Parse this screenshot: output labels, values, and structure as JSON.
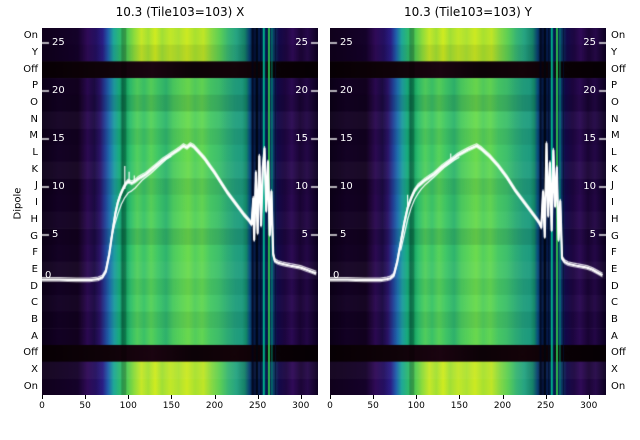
{
  "chart_data": {
    "type": "heatmap",
    "ylabel": "Dipole",
    "x_ticks": [
      0,
      50,
      100,
      150,
      200,
      250,
      300
    ],
    "x_range": [
      0,
      320
    ],
    "amp_ticks": [
      25,
      20,
      15,
      10,
      5
    ],
    "zero_tick": "0",
    "row_labels": [
      "On",
      "Y",
      "Off",
      "P",
      "O",
      "N",
      "M",
      "L",
      "K",
      "J",
      "I",
      "H",
      "G",
      "F",
      "E",
      "D",
      "C",
      "B",
      "A",
      "Off",
      "X",
      "On"
    ],
    "row_types": [
      "bright",
      "bright",
      "off",
      "main",
      "main",
      "main",
      "main",
      "main",
      "main",
      "main",
      "main",
      "main",
      "main",
      "main",
      "main",
      "main",
      "main",
      "main",
      "main",
      "off",
      "bright",
      "bright"
    ],
    "row_gains": [
      1,
      0.93,
      1,
      0.97,
      0.88,
      1.05,
      0.94,
      1.0,
      1.06,
      0.92,
      0.98,
      1.04,
      0.9,
      1.0,
      1.06,
      0.95,
      1.03,
      0.93,
      0.99,
      1,
      1.06,
      1.0
    ],
    "palettes": {
      "main": [
        [
          0.0,
          "#0c0118"
        ],
        [
          0.06,
          "#140225"
        ],
        [
          0.13,
          "#12021f"
        ],
        [
          0.165,
          "#2c0a52"
        ],
        [
          0.19,
          "#1c0b44"
        ],
        [
          0.21,
          "#2b1468"
        ],
        [
          0.228,
          "#233f96"
        ],
        [
          0.245,
          "#1e6fae"
        ],
        [
          0.262,
          "#1f9da0"
        ],
        [
          0.28,
          "#18ad7c"
        ],
        [
          0.292,
          "#0e8a5c"
        ],
        [
          0.3,
          "#0f9c62"
        ],
        [
          0.32,
          "#2fbf6e"
        ],
        [
          0.345,
          "#52d05e"
        ],
        [
          0.37,
          "#3cc46a"
        ],
        [
          0.395,
          "#58d35a"
        ],
        [
          0.42,
          "#40c768"
        ],
        [
          0.45,
          "#2fb46e"
        ],
        [
          0.475,
          "#4bcb60"
        ],
        [
          0.5,
          "#5ad45a"
        ],
        [
          0.53,
          "#6cdb4e"
        ],
        [
          0.555,
          "#54d05e"
        ],
        [
          0.58,
          "#64d854"
        ],
        [
          0.61,
          "#48c966"
        ],
        [
          0.64,
          "#3fc06c"
        ],
        [
          0.67,
          "#2fae76"
        ],
        [
          0.7,
          "#23a07e"
        ],
        [
          0.725,
          "#1e9c80"
        ],
        [
          0.74,
          "#138869"
        ],
        [
          0.752,
          "#0a4f7e"
        ],
        [
          0.765,
          "#07265e"
        ],
        [
          0.777,
          "#04102e"
        ],
        [
          0.79,
          "#061c50"
        ],
        [
          0.805,
          "#04123e"
        ],
        [
          0.82,
          "#05154a"
        ],
        [
          0.835,
          "#0a3d6e"
        ],
        [
          0.852,
          "#12094a"
        ],
        [
          0.88,
          "#1d0640"
        ],
        [
          0.905,
          "#2c0b54"
        ],
        [
          0.935,
          "#190434"
        ],
        [
          0.96,
          "#240847"
        ],
        [
          1.0,
          "#0c0120"
        ]
      ],
      "bright": [
        [
          0.0,
          "#10011c"
        ],
        [
          0.13,
          "#15022a"
        ],
        [
          0.165,
          "#300b58"
        ],
        [
          0.195,
          "#241060"
        ],
        [
          0.22,
          "#2a1e86"
        ],
        [
          0.24,
          "#2060ac"
        ],
        [
          0.26,
          "#1fa898"
        ],
        [
          0.285,
          "#2eba6a"
        ],
        [
          0.31,
          "#53cb52"
        ],
        [
          0.335,
          "#8edc3c"
        ],
        [
          0.36,
          "#c6e828"
        ],
        [
          0.385,
          "#a3e034"
        ],
        [
          0.41,
          "#d0ec20"
        ],
        [
          0.435,
          "#a0df36"
        ],
        [
          0.465,
          "#c2e828"
        ],
        [
          0.495,
          "#ade233"
        ],
        [
          0.525,
          "#cdea22"
        ],
        [
          0.555,
          "#a8e130"
        ],
        [
          0.585,
          "#bfe627"
        ],
        [
          0.615,
          "#86d944"
        ],
        [
          0.645,
          "#5ccf56"
        ],
        [
          0.675,
          "#38b574"
        ],
        [
          0.705,
          "#26a382"
        ],
        [
          0.735,
          "#158068"
        ],
        [
          0.752,
          "#0a3e70"
        ],
        [
          0.768,
          "#051238"
        ],
        [
          0.788,
          "#051c4e"
        ],
        [
          0.806,
          "#041040"
        ],
        [
          0.824,
          "#06164c"
        ],
        [
          0.84,
          "#0c3c66"
        ],
        [
          0.858,
          "#13094a"
        ],
        [
          0.885,
          "#1e0742"
        ],
        [
          0.908,
          "#300b58"
        ],
        [
          0.938,
          "#1b0536"
        ],
        [
          0.962,
          "#270a4a"
        ],
        [
          1.0,
          "#0d0120"
        ]
      ],
      "off": [
        [
          0.0,
          "#070004"
        ],
        [
          0.25,
          "#100309"
        ],
        [
          0.4,
          "#1a0410"
        ],
        [
          0.55,
          "#0c0207"
        ],
        [
          0.7,
          "#140309"
        ],
        [
          0.85,
          "#090105"
        ],
        [
          1.0,
          "#060004"
        ]
      ]
    },
    "features": [
      {
        "x": 92,
        "w": 5,
        "color": "#000000",
        "alpha": 0.22
      },
      {
        "x": 243,
        "w": 2,
        "color": "#010418",
        "alpha": 0.8
      },
      {
        "x": 248,
        "w": 2,
        "color": "#00060f",
        "alpha": 0.85
      },
      {
        "x": 253,
        "w": 1,
        "color": "#020a20",
        "alpha": 0.8
      },
      {
        "x": 256,
        "w": 2,
        "color": "#00bb92",
        "alpha": 0.95
      },
      {
        "x": 259,
        "w": 1,
        "color": "#072a6a",
        "alpha": 0.9
      },
      {
        "x": 262,
        "w": 2,
        "color": "#2fc04e",
        "alpha": 0.95
      },
      {
        "x": 266,
        "w": 1,
        "color": "#00a078",
        "alpha": 0.9
      },
      {
        "x": 270,
        "w": 1,
        "color": "#031030",
        "alpha": 0.8
      }
    ],
    "panels": [
      {
        "title": "10.3 (Tile103=103) X",
        "line": [
          [
            0,
            0.35
          ],
          [
            20,
            0.35
          ],
          [
            40,
            0.3
          ],
          [
            55,
            0.3
          ],
          [
            65,
            0.4
          ],
          [
            70,
            0.6
          ],
          [
            74,
            1.2
          ],
          [
            78,
            3.0
          ],
          [
            82,
            5.5
          ],
          [
            85,
            7.2
          ],
          [
            88,
            8.4
          ],
          [
            91,
            9.2
          ],
          [
            94,
            9.8
          ],
          [
            97,
            10.3
          ],
          [
            100,
            10.6
          ],
          [
            104,
            10.4
          ],
          [
            108,
            10.6
          ],
          [
            112,
            10.9
          ],
          [
            116,
            11.1
          ],
          [
            120,
            11.3
          ],
          [
            124,
            11.6
          ],
          [
            128,
            11.9
          ],
          [
            132,
            12.2
          ],
          [
            136,
            12.5
          ],
          [
            140,
            12.8
          ],
          [
            145,
            13.1
          ],
          [
            150,
            13.4
          ],
          [
            155,
            13.7
          ],
          [
            160,
            14.0
          ],
          [
            164,
            14.3
          ],
          [
            168,
            14.1
          ],
          [
            172,
            14.4
          ],
          [
            176,
            14.2
          ],
          [
            180,
            13.8
          ],
          [
            184,
            13.4
          ],
          [
            188,
            13.0
          ],
          [
            192,
            12.5
          ],
          [
            196,
            12.0
          ],
          [
            200,
            11.5
          ],
          [
            205,
            10.8
          ],
          [
            210,
            10.1
          ],
          [
            215,
            9.4
          ],
          [
            220,
            8.8
          ],
          [
            225,
            8.2
          ],
          [
            230,
            7.6
          ],
          [
            235,
            7.0
          ],
          [
            240,
            6.5
          ],
          [
            243,
            6.1
          ],
          [
            245,
            8.8
          ],
          [
            246,
            4.5
          ],
          [
            248,
            11.5
          ],
          [
            250,
            5.2
          ],
          [
            252,
            13.2
          ],
          [
            254,
            6.0
          ],
          [
            256,
            12.0
          ],
          [
            258,
            14.0
          ],
          [
            260,
            7.5
          ],
          [
            262,
            12.6
          ],
          [
            264,
            5.0
          ],
          [
            266,
            9.5
          ],
          [
            268,
            3.0
          ],
          [
            270,
            2.3
          ],
          [
            274,
            2.1
          ],
          [
            278,
            2.0
          ],
          [
            283,
            1.9
          ],
          [
            288,
            1.8
          ],
          [
            294,
            1.7
          ],
          [
            300,
            1.6
          ],
          [
            306,
            1.4
          ],
          [
            312,
            1.2
          ],
          [
            318,
            1.0
          ]
        ],
        "line2": [
          [
            80,
            4.5
          ],
          [
            84,
            6.0
          ],
          [
            88,
            7.2
          ],
          [
            92,
            8.2
          ],
          [
            96,
            8.9
          ],
          [
            100,
            9.4
          ],
          [
            104,
            9.6
          ],
          [
            108,
            9.9
          ],
          [
            112,
            10.3
          ],
          [
            116,
            10.7
          ],
          [
            120,
            11.0
          ],
          [
            126,
            11.4
          ],
          [
            132,
            11.9
          ],
          [
            138,
            12.4
          ],
          [
            144,
            12.9
          ],
          [
            150,
            13.2
          ]
        ],
        "spikes": [
          {
            "x": 96,
            "a0": 9.8,
            "a1": 12.2
          },
          {
            "x": 101,
            "a0": 10.4,
            "a1": 11.6
          },
          {
            "x": 107,
            "a0": 10.5,
            "a1": 11.2
          }
        ]
      },
      {
        "title": "10.3 (Tile103=103) Y",
        "line": [
          [
            0,
            0.35
          ],
          [
            20,
            0.35
          ],
          [
            40,
            0.3
          ],
          [
            58,
            0.3
          ],
          [
            66,
            0.4
          ],
          [
            70,
            0.5
          ],
          [
            74,
            0.8
          ],
          [
            78,
            2.2
          ],
          [
            82,
            4.2
          ],
          [
            86,
            6.2
          ],
          [
            90,
            7.8
          ],
          [
            94,
            8.8
          ],
          [
            98,
            9.6
          ],
          [
            102,
            10.1
          ],
          [
            106,
            10.4
          ],
          [
            110,
            10.7
          ],
          [
            115,
            11.0
          ],
          [
            120,
            11.3
          ],
          [
            125,
            11.7
          ],
          [
            130,
            12.1
          ],
          [
            136,
            12.5
          ],
          [
            142,
            12.9
          ],
          [
            148,
            13.3
          ],
          [
            154,
            13.6
          ],
          [
            160,
            13.9
          ],
          [
            165,
            14.1
          ],
          [
            170,
            14.3
          ],
          [
            175,
            14.0
          ],
          [
            180,
            13.6
          ],
          [
            185,
            13.2
          ],
          [
            190,
            12.7
          ],
          [
            195,
            12.2
          ],
          [
            200,
            11.6
          ],
          [
            205,
            11.0
          ],
          [
            210,
            10.3
          ],
          [
            215,
            9.6
          ],
          [
            220,
            9.0
          ],
          [
            225,
            8.4
          ],
          [
            230,
            7.8
          ],
          [
            235,
            7.2
          ],
          [
            240,
            6.6
          ],
          [
            243,
            6.2
          ],
          [
            245,
            5.8
          ],
          [
            247,
            9.5
          ],
          [
            249,
            4.8
          ],
          [
            251,
            14.5
          ],
          [
            253,
            7.0
          ],
          [
            255,
            12.5
          ],
          [
            257,
            5.5
          ],
          [
            259,
            13.8
          ],
          [
            261,
            8.0
          ],
          [
            263,
            12.0
          ],
          [
            265,
            4.5
          ],
          [
            267,
            8.5
          ],
          [
            269,
            2.6
          ],
          [
            272,
            2.2
          ],
          [
            276,
            2.0
          ],
          [
            281,
            1.9
          ],
          [
            286,
            1.8
          ],
          [
            292,
            1.7
          ],
          [
            298,
            1.6
          ],
          [
            304,
            1.4
          ],
          [
            310,
            1.1
          ],
          [
            316,
            0.8
          ]
        ],
        "line2": [
          [
            82,
            3.4
          ],
          [
            86,
            5.0
          ],
          [
            90,
            6.6
          ],
          [
            94,
            7.8
          ],
          [
            98,
            8.7
          ],
          [
            102,
            9.3
          ],
          [
            106,
            9.8
          ],
          [
            110,
            10.2
          ],
          [
            115,
            10.6
          ],
          [
            120,
            11.0
          ],
          [
            126,
            11.5
          ],
          [
            132,
            12.0
          ],
          [
            138,
            12.4
          ],
          [
            144,
            12.8
          ],
          [
            150,
            13.1
          ]
        ],
        "spikes": [
          {
            "x": 90,
            "a0": 7.8,
            "a1": 9.2
          },
          {
            "x": 140,
            "a0": 12.7,
            "a1": 13.5
          }
        ]
      }
    ]
  }
}
